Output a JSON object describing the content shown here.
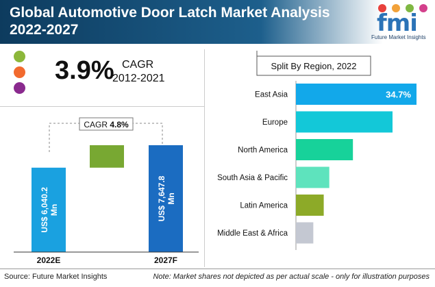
{
  "header": {
    "title_line1": "Global Automotive Door Latch Market Analysis",
    "title_line2": "2022-2027",
    "logo_text": "fmi",
    "logo_subtitle": "Future Market Insights"
  },
  "colors": {
    "accent_green": "#8cb73a",
    "accent_orange": "#f26a2e",
    "accent_purple": "#8a2a8e",
    "bar_blue": "#1aa1e0",
    "bar_dark_blue": "#1b6cc1",
    "growth_green": "#78a832"
  },
  "cagr_summary": {
    "value": "3.9%",
    "label": "CAGR",
    "period": "2012-2021"
  },
  "footer": {
    "source": "Source: Future Market Insights",
    "note": "Note: Market shares not depicted as per actual scale - only for illustration purposes"
  },
  "chart_data": [
    {
      "type": "bar",
      "categories": [
        "2022E",
        "2027F"
      ],
      "values": [
        6040.2,
        7647.8
      ],
      "value_labels": [
        "US$ 6,040.2 Mn",
        "US$ 7,647.8 Mn"
      ],
      "cagr_label": "CAGR",
      "cagr_value": "4.8%"
    },
    {
      "type": "bar",
      "orientation": "horizontal",
      "title": "Split By Region, 2022",
      "categories": [
        "East Asia",
        "Europe",
        "North America",
        "South Asia & Pacific",
        "Latin America",
        "Middle East & Africa"
      ],
      "values": [
        34.7,
        27.8,
        16.4,
        9.6,
        8.0,
        5.0
      ],
      "data_labels": [
        "34.7%",
        "",
        "",
        "",
        "",
        ""
      ],
      "colors": [
        "#12a8ea",
        "#13c8d8",
        "#17d29a",
        "#5ee3bd",
        "#8daa28",
        "#c4c8d2"
      ]
    }
  ]
}
